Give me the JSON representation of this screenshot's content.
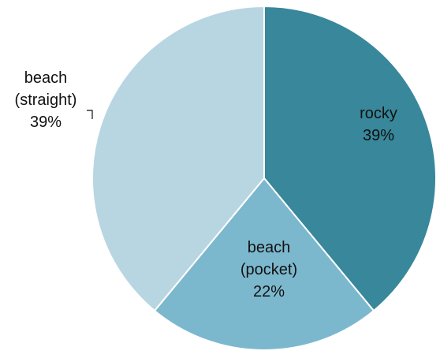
{
  "chart_data": {
    "type": "pie",
    "title": "",
    "slices": [
      {
        "label_lines": [
          "rocky"
        ],
        "percent_text": "39%",
        "value": 39,
        "color": "#38879b"
      },
      {
        "label_lines": [
          "beach",
          "(pocket)"
        ],
        "percent_text": "22%",
        "value": 22,
        "color": "#7cb8cd"
      },
      {
        "label_lines": [
          "beach",
          "(straight)"
        ],
        "percent_text": "39%",
        "value": 39,
        "color": "#b8d6e1"
      }
    ],
    "legend": "none",
    "data_labels": "on-slices"
  }
}
